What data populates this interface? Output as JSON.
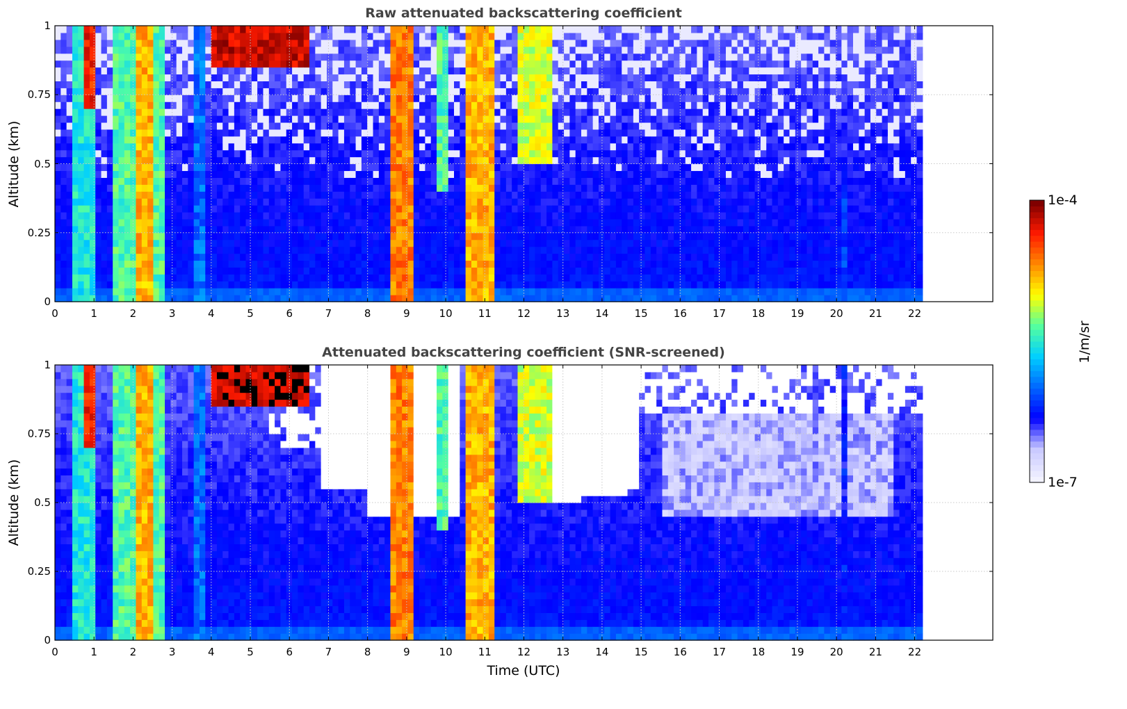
{
  "colors": {
    "background": "#ffffff",
    "title": "#444444",
    "grid": "#c8c8c8",
    "colormap": [
      "#f2f2ff",
      "#c8c8ff",
      "#0000ff",
      "#0066ff",
      "#00cfff",
      "#55ff9f",
      "#ffff00",
      "#ff8a00",
      "#ff1a00",
      "#800000"
    ]
  },
  "colorbar": {
    "label": "1/m/sr",
    "max_label": "1e-4",
    "min_label": "1e-7",
    "scale": "log",
    "range": [
      1e-07,
      0.0001
    ]
  },
  "chart_data": [
    {
      "type": "heatmap",
      "title": "Raw attenuated backscattering coefficient",
      "xlabel": "",
      "ylabel": "Altitude (km)",
      "xlim": [
        0,
        24
      ],
      "ylim": [
        0,
        1
      ],
      "x_ticks": [
        "0",
        "1",
        "2",
        "3",
        "4",
        "5",
        "6",
        "7",
        "8",
        "9",
        "10",
        "11",
        "12",
        "13",
        "14",
        "15",
        "16",
        "17",
        "18",
        "19",
        "20",
        "21",
        "22"
      ],
      "y_ticks": [
        "0",
        "0.25",
        "0.5",
        "0.75",
        "1"
      ],
      "grid": true,
      "data_x_range": [
        0,
        22.2
      ],
      "snr_screened": false,
      "features": [
        {
          "x": [
            0.4,
            1.1
          ],
          "altitude": [
            0,
            1
          ],
          "level": 0.55
        },
        {
          "x": [
            0.8,
            1.0
          ],
          "altitude": [
            0.7,
            1
          ],
          "level": 0.95
        },
        {
          "x": [
            1.5,
            2.8
          ],
          "altitude": [
            0,
            1
          ],
          "level": 0.6
        },
        {
          "x": [
            2.1,
            2.5
          ],
          "altitude": [
            0,
            1
          ],
          "level": 0.8
        },
        {
          "x": [
            3.5,
            3.8
          ],
          "altitude": [
            0,
            1
          ],
          "level": 0.4
        },
        {
          "x": [
            4.0,
            6.5
          ],
          "altitude": [
            0.85,
            1
          ],
          "level": 1.0
        },
        {
          "x": [
            8.6,
            9.2
          ],
          "altitude": [
            0,
            1
          ],
          "level": 0.85
        },
        {
          "x": [
            9.7,
            10.1
          ],
          "altitude": [
            0.4,
            1
          ],
          "level": 0.6
        },
        {
          "x": [
            10.5,
            11.2
          ],
          "altitude": [
            0,
            1
          ],
          "level": 0.8
        },
        {
          "x": [
            11.8,
            12.7
          ],
          "altitude": [
            0.5,
            1
          ],
          "level": 0.7
        },
        {
          "x": [
            20.2,
            20.3
          ],
          "altitude": [
            0,
            0.5
          ],
          "level": 0.35
        }
      ]
    },
    {
      "type": "heatmap",
      "title": "Attenuated backscattering coefficient (SNR-screened)",
      "xlabel": "Time (UTC)",
      "ylabel": "Altitude (km)",
      "xlim": [
        0,
        24
      ],
      "ylim": [
        0,
        1
      ],
      "x_ticks": [
        "0",
        "1",
        "2",
        "3",
        "4",
        "5",
        "6",
        "7",
        "8",
        "9",
        "10",
        "11",
        "12",
        "13",
        "14",
        "15",
        "16",
        "17",
        "18",
        "19",
        "20",
        "21",
        "22"
      ],
      "y_ticks": [
        "0",
        "0.25",
        "0.5",
        "0.75",
        "1"
      ],
      "grid": true,
      "data_x_range": [
        0,
        22.2
      ],
      "snr_screened": true,
      "features": [
        {
          "x": [
            0.4,
            1.1
          ],
          "altitude": [
            0,
            1
          ],
          "level": 0.55
        },
        {
          "x": [
            0.8,
            1.0
          ],
          "altitude": [
            0.7,
            1
          ],
          "level": 0.95
        },
        {
          "x": [
            1.5,
            2.8
          ],
          "altitude": [
            0,
            1
          ],
          "level": 0.6
        },
        {
          "x": [
            2.1,
            2.5
          ],
          "altitude": [
            0,
            1
          ],
          "level": 0.8
        },
        {
          "x": [
            3.5,
            3.8
          ],
          "altitude": [
            0,
            1
          ],
          "level": 0.4
        },
        {
          "x": [
            4.0,
            6.5
          ],
          "altitude": [
            0.85,
            1
          ],
          "level": 1.0
        },
        {
          "x": [
            8.6,
            9.2
          ],
          "altitude": [
            0,
            1
          ],
          "level": 0.85
        },
        {
          "x": [
            9.7,
            10.1
          ],
          "altitude": [
            0.4,
            1
          ],
          "level": 0.6
        },
        {
          "x": [
            10.5,
            11.2
          ],
          "altitude": [
            0,
            1
          ],
          "level": 0.8
        },
        {
          "x": [
            11.8,
            12.7
          ],
          "altitude": [
            0.5,
            1
          ],
          "level": 0.7
        },
        {
          "x": [
            19.4,
            19.6
          ],
          "altitude": [
            0,
            1
          ],
          "level": 0.2
        },
        {
          "x": [
            20.2,
            20.3
          ],
          "altitude": [
            0,
            1
          ],
          "level": 0.3
        }
      ]
    }
  ]
}
